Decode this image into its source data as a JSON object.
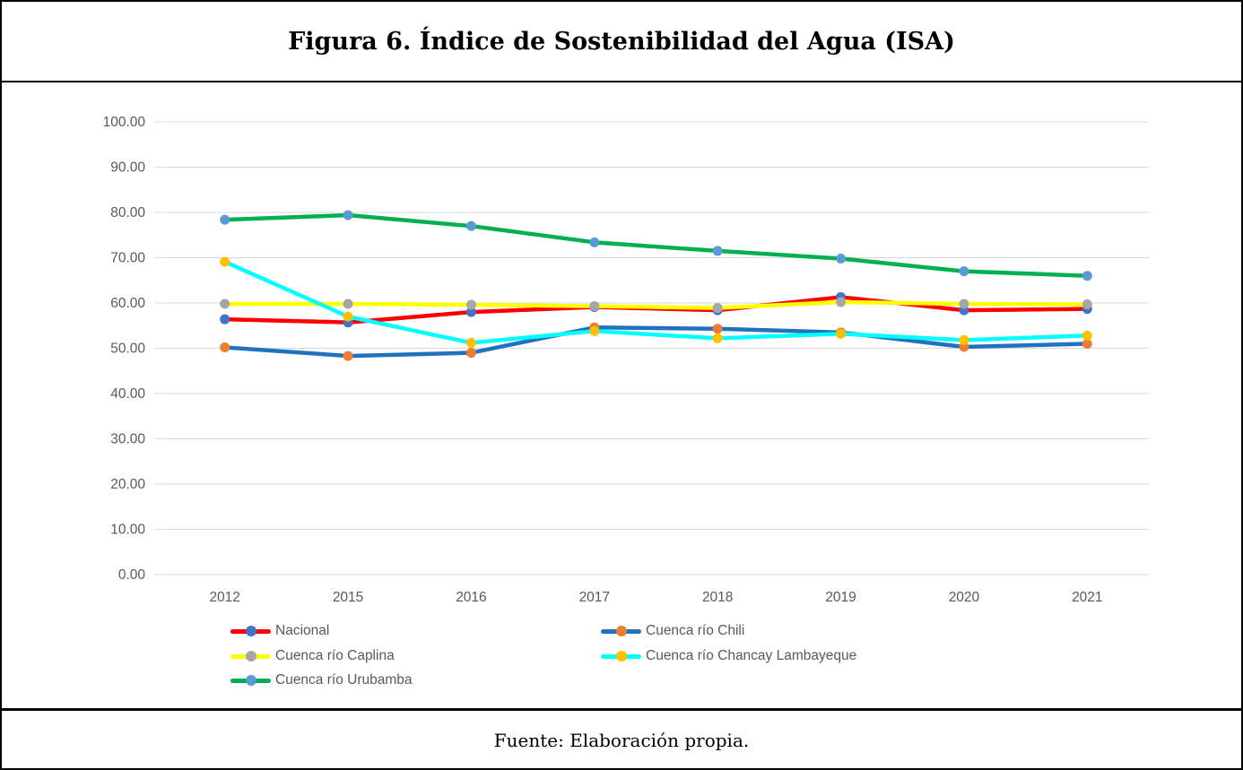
{
  "page": {
    "title": "Figura 6. Índice de Sostenibilidad del Agua (ISA)",
    "source_note": "Fuente: Elaboración propia."
  },
  "chart_data": {
    "type": "line",
    "title": "",
    "xlabel": "",
    "ylabel": "",
    "categories": [
      "2012",
      "2015",
      "2016",
      "2017",
      "2018",
      "2019",
      "2020",
      "2021"
    ],
    "series": [
      {
        "name": "Nacional",
        "line_color": "#FF0000",
        "marker_color": "#4472C4",
        "values": [
          56.4,
          55.7,
          58.0,
          59.1,
          58.4,
          61.3,
          58.4,
          58.7
        ]
      },
      {
        "name": "Cuenca río Chili",
        "line_color": "#1F72C0",
        "marker_color": "#ED7D31",
        "values": [
          50.2,
          48.3,
          49.0,
          54.6,
          54.3,
          53.5,
          50.3,
          51.0
        ]
      },
      {
        "name": "Cuenca río Caplina",
        "line_color": "#FFFF00",
        "marker_color": "#A6A6A6",
        "values": [
          59.8,
          59.8,
          59.6,
          59.3,
          58.9,
          60.2,
          59.8,
          59.7
        ]
      },
      {
        "name": "Cuenca río Chancay Lambayeque",
        "line_color": "#00FFFF",
        "marker_color": "#FFC000",
        "values": [
          69.1,
          57.0,
          51.2,
          53.8,
          52.2,
          53.2,
          51.8,
          52.8
        ]
      },
      {
        "name": "Cuenca río Urubamba",
        "line_color": "#00B050",
        "marker_color": "#5B9BD5",
        "values": [
          78.4,
          79.4,
          77.0,
          73.4,
          71.5,
          69.8,
          67.0,
          66.0
        ]
      }
    ],
    "ylim": [
      0,
      100
    ],
    "ytick_step": 10,
    "y_tick_labels": [
      "0.00",
      "10.00",
      "20.00",
      "30.00",
      "40.00",
      "50.00",
      "60.00",
      "70.00",
      "80.00",
      "90.00",
      "100.00"
    ],
    "grid": "horizontal",
    "gridline_color": "#D9D9D9",
    "axis_text_color": "#595959",
    "legend_position": "bottom"
  }
}
